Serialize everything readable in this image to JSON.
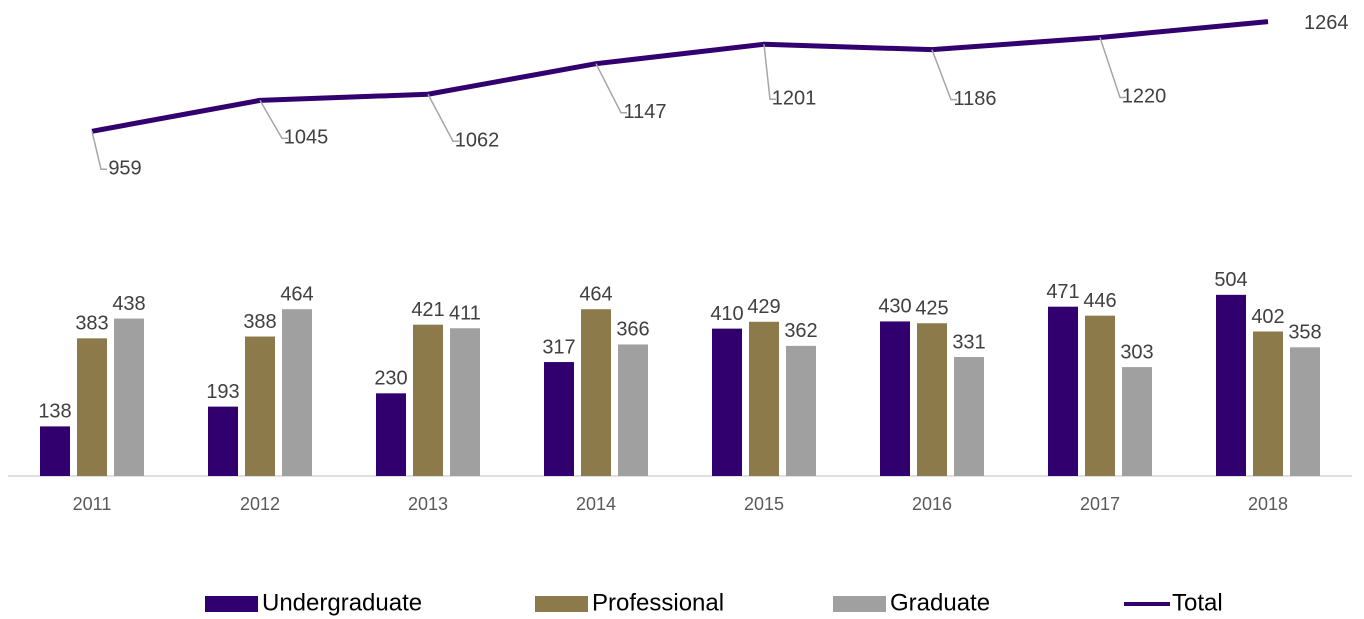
{
  "chart_data": {
    "type": "bar",
    "categories": [
      "2011",
      "2012",
      "2013",
      "2014",
      "2015",
      "2016",
      "2017",
      "2018"
    ],
    "series": [
      {
        "name": "Undergraduate",
        "color": "#32006e",
        "values": [
          138,
          193,
          230,
          317,
          410,
          430,
          471,
          504
        ]
      },
      {
        "name": "Professional",
        "color": "#8c7a4b",
        "values": [
          383,
          388,
          421,
          464,
          429,
          425,
          446,
          402
        ]
      },
      {
        "name": "Graduate",
        "color": "#a0a0a0",
        "values": [
          438,
          464,
          411,
          366,
          362,
          331,
          303,
          358
        ]
      },
      {
        "name": "Total",
        "type": "line",
        "color": "#33006f",
        "values": [
          959,
          1045,
          1062,
          1147,
          1201,
          1186,
          1220,
          1264
        ]
      }
    ],
    "ylim": [
      0,
      1300
    ],
    "legend": "bottom"
  }
}
